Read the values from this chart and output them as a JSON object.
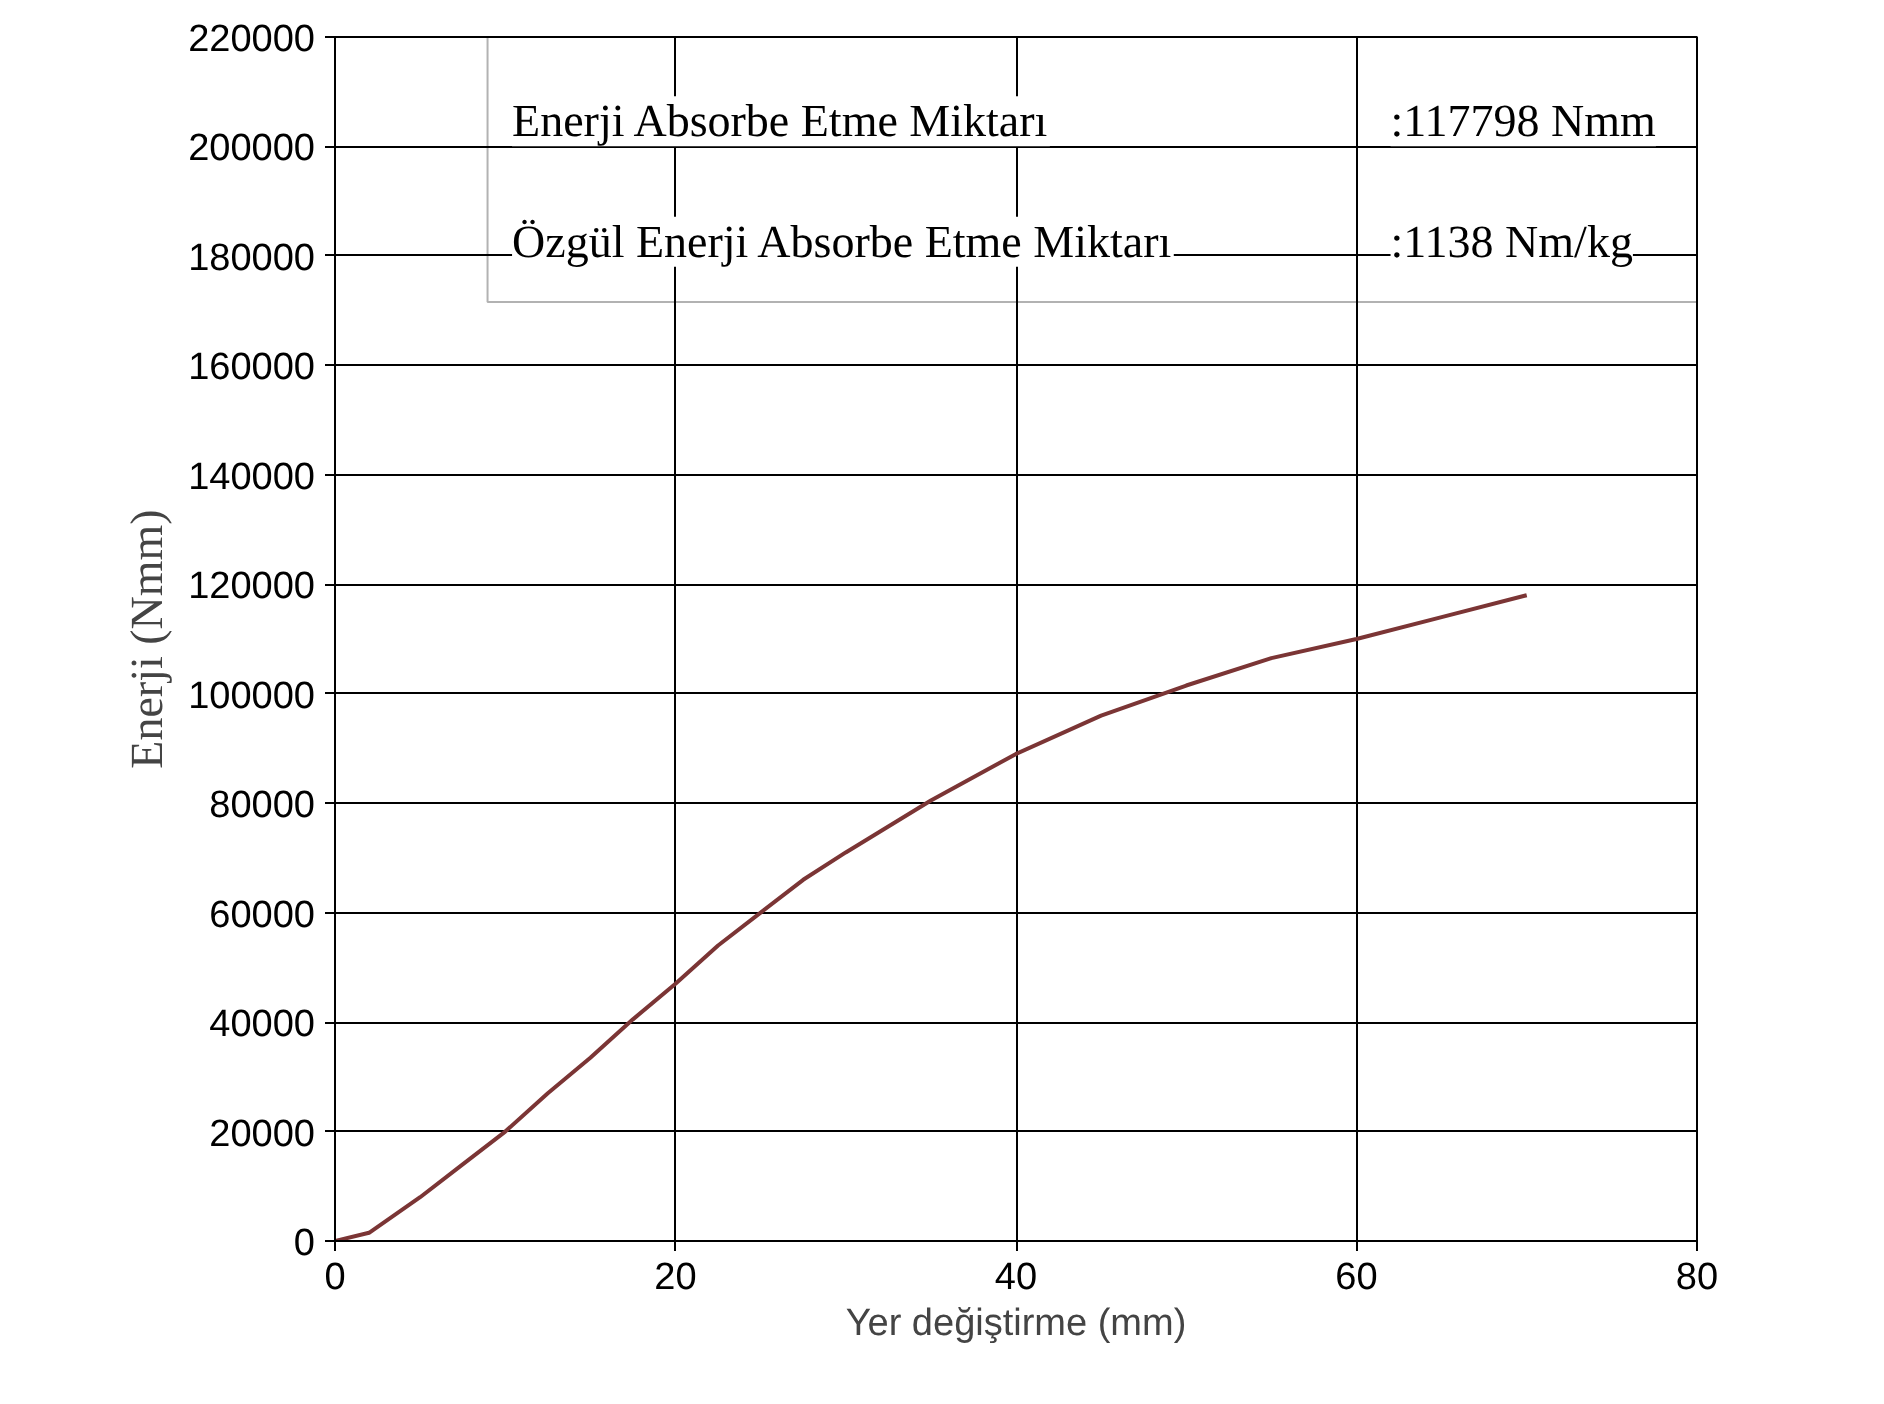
{
  "chart_data": {
    "type": "line",
    "xlabel": "Yer değiştirme (mm)",
    "ylabel": "Enerji (Nmm)",
    "x": [
      0,
      2,
      5,
      7.5,
      10,
      12.5,
      15,
      17.5,
      20,
      22.5,
      25,
      27.5,
      30,
      35,
      40,
      45,
      50,
      55,
      60,
      65,
      70
    ],
    "series": [
      {
        "color": "#7b3535",
        "values": [
          0,
          1500,
          8000,
          14000,
          20000,
          27000,
          33500,
          40500,
          47000,
          54000,
          60000,
          66000,
          71000,
          80500,
          89000,
          96000,
          101500,
          106500,
          110000,
          114000,
          118000
        ]
      }
    ],
    "xlim": [
      0,
      80
    ],
    "xticks": [
      0,
      20,
      40,
      60,
      80
    ],
    "ylim": [
      0,
      220000
    ],
    "yticks": [
      0,
      20000,
      40000,
      60000,
      80000,
      100000,
      120000,
      140000,
      160000,
      180000,
      200000,
      220000
    ],
    "grid": true,
    "marker": "none",
    "line_style": "solid",
    "annotations": [
      "Enerji Absorbe Etme Miktarı :117798 Nmm",
      "Özgül Enerji Absorbe Etme Miktarı :1138 Nm/kg"
    ]
  }
}
